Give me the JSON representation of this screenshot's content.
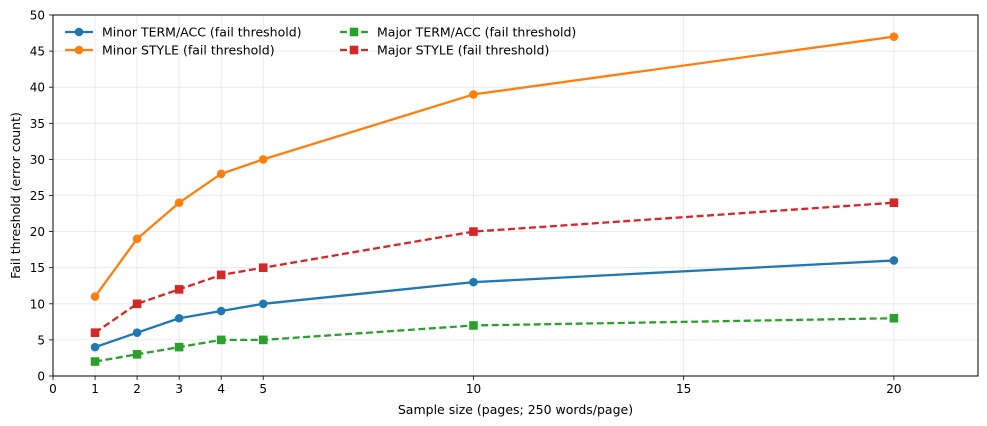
{
  "chart_data": {
    "type": "line",
    "title": "",
    "xlabel": "Sample size (pages; 250 words/page)",
    "ylabel": "Fail threshold (error count)",
    "xlim": [
      0,
      22
    ],
    "ylim": [
      0,
      50
    ],
    "xticks": [
      0,
      1,
      2,
      3,
      4,
      5,
      10,
      15,
      20
    ],
    "yticks": [
      0,
      5,
      10,
      15,
      20,
      25,
      30,
      35,
      40,
      45,
      50
    ],
    "grid": true,
    "legend_position": "top-left",
    "x": [
      1,
      2,
      3,
      4,
      5,
      10,
      20
    ],
    "series": [
      {
        "name": "Minor TERM/ACC (fail threshold)",
        "values": [
          4,
          6,
          8,
          9,
          10,
          13,
          16
        ],
        "color": "#1f77b4",
        "linestyle": "solid",
        "marker": "circle"
      },
      {
        "name": "Minor STYLE (fail threshold)",
        "values": [
          11,
          19,
          24,
          28,
          30,
          39,
          47
        ],
        "color": "#ff7f0e",
        "linestyle": "solid",
        "marker": "circle"
      },
      {
        "name": "Major TERM/ACC (fail threshold)",
        "values": [
          2,
          3,
          4,
          5,
          5,
          7,
          8
        ],
        "color": "#2ca02c",
        "linestyle": "dashed",
        "marker": "square"
      },
      {
        "name": "Major STYLE (fail threshold)",
        "values": [
          6,
          10,
          12,
          14,
          15,
          20,
          24
        ],
        "color": "#d62728",
        "linestyle": "dashed",
        "marker": "square"
      }
    ]
  }
}
